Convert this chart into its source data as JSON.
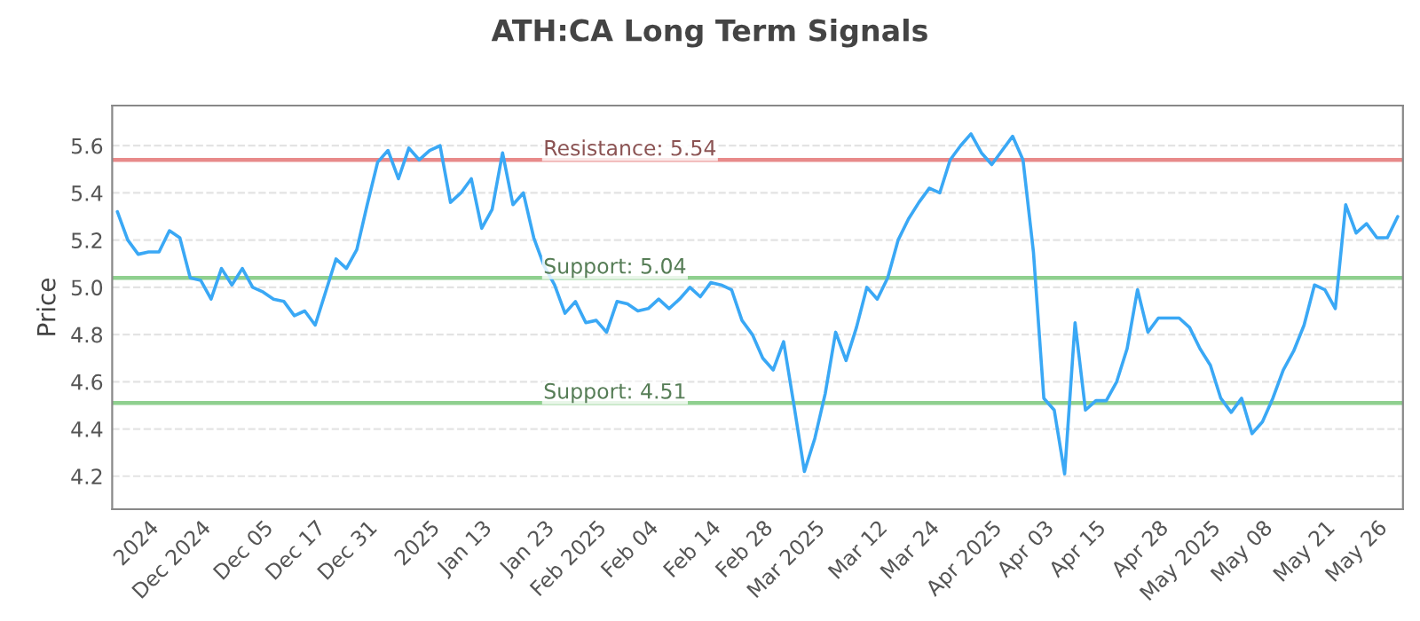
{
  "chart_data": {
    "type": "line",
    "title": "ATH:CA Long Term Signals",
    "ylabel": "Price",
    "categories": [
      null,
      null,
      null,
      "2024",
      null,
      null,
      null,
      null,
      "Dec 2024",
      null,
      null,
      null,
      null,
      null,
      "Dec 05",
      null,
      null,
      null,
      null,
      "Dec 17",
      null,
      null,
      null,
      null,
      "Dec 31",
      null,
      null,
      null,
      null,
      null,
      "2025",
      null,
      null,
      null,
      null,
      "Jan 13",
      null,
      null,
      null,
      null,
      null,
      "Jan 23",
      null,
      null,
      null,
      null,
      "Feb 2025",
      null,
      null,
      null,
      null,
      "Feb 04",
      null,
      null,
      null,
      null,
      null,
      "Feb 14",
      null,
      null,
      null,
      null,
      "Feb 28",
      null,
      null,
      null,
      null,
      "Mar 2025",
      null,
      null,
      null,
      null,
      null,
      "Mar 12",
      null,
      null,
      null,
      null,
      "Mar 24",
      null,
      null,
      null,
      null,
      null,
      "Apr 2025",
      null,
      null,
      null,
      null,
      "Apr 03",
      null,
      null,
      null,
      null,
      "Apr 15",
      null,
      null,
      null,
      null,
      null,
      "Apr 28",
      null,
      null,
      null,
      null,
      "May 2025",
      null,
      null,
      null,
      null,
      "May 08",
      null,
      null,
      null,
      null,
      null,
      "May 21",
      null,
      null,
      null,
      null,
      "May 26",
      null,
      null
    ],
    "series": [
      {
        "color": "#3aa8f5",
        "values": [
          5.32,
          5.2,
          5.14,
          5.15,
          5.15,
          5.24,
          5.21,
          5.04,
          5.03,
          4.95,
          5.08,
          5.01,
          5.08,
          5.0,
          4.98,
          4.95,
          4.94,
          4.88,
          4.9,
          4.84,
          4.98,
          5.12,
          5.08,
          5.16,
          5.35,
          5.53,
          5.58,
          5.46,
          5.59,
          5.54,
          5.58,
          5.6,
          5.36,
          5.4,
          5.46,
          5.25,
          5.33,
          5.57,
          5.35,
          5.4,
          5.21,
          5.09,
          5.01,
          4.89,
          4.94,
          4.85,
          4.86,
          4.81,
          4.94,
          4.93,
          4.9,
          4.91,
          4.95,
          4.91,
          4.95,
          5.0,
          4.96,
          5.02,
          5.01,
          4.99,
          4.86,
          4.8,
          4.7,
          4.65,
          4.77,
          4.5,
          4.22,
          4.36,
          4.55,
          4.81,
          4.69,
          4.83,
          5.0,
          4.95,
          5.04,
          5.2,
          5.29,
          5.36,
          5.42,
          5.4,
          5.54,
          5.6,
          5.65,
          5.57,
          5.52,
          5.58,
          5.64,
          5.54,
          5.15,
          4.53,
          4.48,
          4.21,
          4.85,
          4.48,
          4.52,
          4.52,
          4.6,
          4.74,
          4.99,
          4.81,
          4.87,
          4.87,
          4.87,
          4.83,
          4.74,
          4.67,
          4.53,
          4.47,
          4.53,
          4.38,
          4.43,
          4.53,
          4.65,
          4.73,
          4.84,
          5.01,
          4.99,
          4.91,
          5.35,
          5.23,
          5.27,
          5.21,
          5.21,
          5.3
        ]
      }
    ],
    "ylim": [
      4.06,
      5.77
    ],
    "yticks": [
      4.2,
      4.4,
      4.6,
      4.8,
      {
        "value": 5.0,
        "label": "5.0"
      },
      5.2,
      5.4,
      5.6
    ],
    "grid": "y",
    "ref_lines": [
      {
        "axis": "y",
        "value": 5.54,
        "label": "Resistance: 5.54",
        "color": "#e88a8a"
      },
      {
        "axis": "y",
        "value": 5.04,
        "label": "Support: 5.04",
        "color": "#8fd08f"
      },
      {
        "axis": "y",
        "value": 4.51,
        "label": "Support: 4.51",
        "color": "#8fd08f"
      }
    ]
  }
}
